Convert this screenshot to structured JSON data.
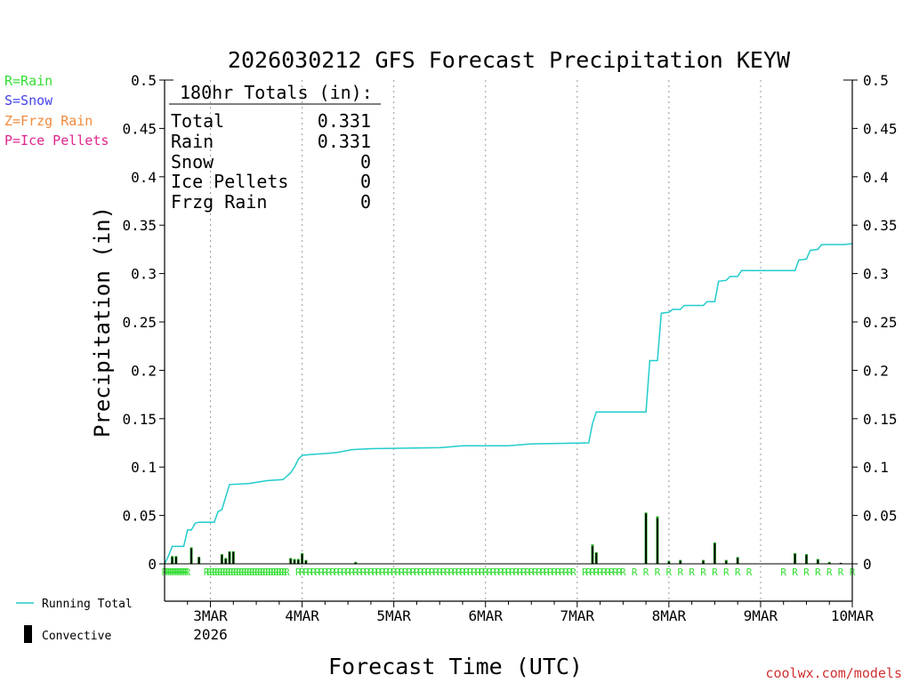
{
  "chart_data": {
    "type": "bar+line",
    "title": "2026030212 GFS Forecast Precipitation KEYW",
    "ylabel": "Precipitation (in)",
    "xlabel": "Forecast Time (UTC)",
    "ylim": [
      0,
      0.5
    ],
    "y_ticks": [
      "0",
      "0.05",
      "0.1",
      "0.15",
      "0.2",
      "0.25",
      "0.3",
      "0.35",
      "0.4",
      "0.45",
      "0.5"
    ],
    "x_ticks": [
      {
        "hour": 12,
        "label": "3MAR",
        "sublabel": "2026"
      },
      {
        "hour": 36,
        "label": "4MAR"
      },
      {
        "hour": 60,
        "label": "5MAR"
      },
      {
        "hour": 84,
        "label": "6MAR"
      },
      {
        "hour": 108,
        "label": "7MAR"
      },
      {
        "hour": 132,
        "label": "8MAR"
      },
      {
        "hour": 156,
        "label": "9MAR"
      },
      {
        "hour": 180,
        "label": "10MAR"
      }
    ],
    "x_range_hours": [
      0,
      180
    ],
    "grid": "vertical dotted at day boundaries",
    "summary_box": {
      "heading": "180hr Totals (in):",
      "rows": [
        {
          "label": "Total",
          "value": "0.331"
        },
        {
          "label": "Rain",
          "value": "0.331"
        },
        {
          "label": "Snow",
          "value": "0"
        },
        {
          "label": "Ice Pellets",
          "value": "0"
        },
        {
          "label": "Frzg Rain",
          "value": "0"
        }
      ]
    },
    "precip_type_legend": [
      {
        "text": "R=Rain",
        "color": "#33dd33"
      },
      {
        "text": "S=Snow",
        "color": "#4444ee"
      },
      {
        "text": "Z=Frzg Rain",
        "color": "#f08a3c"
      },
      {
        "text": "P=Ice Pellets",
        "color": "#e0258c"
      }
    ],
    "series_legend": [
      {
        "name": "Running Total",
        "color": "#22cccc",
        "kind": "line"
      },
      {
        "name": "Convective",
        "color": "#000000",
        "kind": "bar"
      }
    ],
    "running_total": [
      {
        "h": 0,
        "v": 0.0
      },
      {
        "h": 1,
        "v": 0.008
      },
      {
        "h": 2,
        "v": 0.018
      },
      {
        "h": 5,
        "v": 0.018
      },
      {
        "h": 6,
        "v": 0.035
      },
      {
        "h": 7,
        "v": 0.035
      },
      {
        "h": 8,
        "v": 0.042
      },
      {
        "h": 9,
        "v": 0.043
      },
      {
        "h": 13,
        "v": 0.043
      },
      {
        "h": 14,
        "v": 0.054
      },
      {
        "h": 15,
        "v": 0.056
      },
      {
        "h": 16,
        "v": 0.069
      },
      {
        "h": 17,
        "v": 0.082
      },
      {
        "h": 22,
        "v": 0.083
      },
      {
        "h": 27,
        "v": 0.086
      },
      {
        "h": 31,
        "v": 0.087
      },
      {
        "h": 33,
        "v": 0.094
      },
      {
        "h": 34,
        "v": 0.1
      },
      {
        "h": 35,
        "v": 0.108
      },
      {
        "h": 36,
        "v": 0.112
      },
      {
        "h": 38,
        "v": 0.113
      },
      {
        "h": 42,
        "v": 0.114
      },
      {
        "h": 45,
        "v": 0.115
      },
      {
        "h": 49,
        "v": 0.118
      },
      {
        "h": 54,
        "v": 0.119
      },
      {
        "h": 72,
        "v": 0.12
      },
      {
        "h": 78,
        "v": 0.122
      },
      {
        "h": 90,
        "v": 0.122
      },
      {
        "h": 96,
        "v": 0.124
      },
      {
        "h": 111,
        "v": 0.125
      },
      {
        "h": 112,
        "v": 0.145
      },
      {
        "h": 113,
        "v": 0.157
      },
      {
        "h": 126,
        "v": 0.157
      },
      {
        "h": 127,
        "v": 0.21
      },
      {
        "h": 129,
        "v": 0.21
      },
      {
        "h": 130,
        "v": 0.259
      },
      {
        "h": 132,
        "v": 0.26
      },
      {
        "h": 133,
        "v": 0.263
      },
      {
        "h": 135,
        "v": 0.263
      },
      {
        "h": 136,
        "v": 0.267
      },
      {
        "h": 141,
        "v": 0.267
      },
      {
        "h": 142,
        "v": 0.271
      },
      {
        "h": 144,
        "v": 0.271
      },
      {
        "h": 145,
        "v": 0.292
      },
      {
        "h": 147,
        "v": 0.293
      },
      {
        "h": 148,
        "v": 0.297
      },
      {
        "h": 150,
        "v": 0.297
      },
      {
        "h": 151,
        "v": 0.303
      },
      {
        "h": 165,
        "v": 0.303
      },
      {
        "h": 166,
        "v": 0.314
      },
      {
        "h": 168,
        "v": 0.315
      },
      {
        "h": 169,
        "v": 0.324
      },
      {
        "h": 171,
        "v": 0.325
      },
      {
        "h": 172,
        "v": 0.33
      },
      {
        "h": 178,
        "v": 0.33
      },
      {
        "h": 180,
        "v": 0.331
      }
    ],
    "period_bars": [
      {
        "h": 2,
        "total": 0.008,
        "conv": 0.007
      },
      {
        "h": 3,
        "total": 0.008,
        "conv": 0.007
      },
      {
        "h": 7,
        "total": 0.017,
        "conv": 0.016
      },
      {
        "h": 9,
        "total": 0.007,
        "conv": 0.007
      },
      {
        "h": 15,
        "total": 0.01,
        "conv": 0.009
      },
      {
        "h": 16,
        "total": 0.006,
        "conv": 0.005
      },
      {
        "h": 17,
        "total": 0.013,
        "conv": 0.012
      },
      {
        "h": 18,
        "total": 0.013,
        "conv": 0.012
      },
      {
        "h": 33,
        "total": 0.006,
        "conv": 0.005
      },
      {
        "h": 34,
        "total": 0.005,
        "conv": 0.004
      },
      {
        "h": 35,
        "total": 0.005,
        "conv": 0.004
      },
      {
        "h": 36,
        "total": 0.011,
        "conv": 0.01
      },
      {
        "h": 37,
        "total": 0.004,
        "conv": 0.003
      },
      {
        "h": 50,
        "total": 0.002,
        "conv": 0.001
      },
      {
        "h": 112,
        "total": 0.02,
        "conv": 0.018
      },
      {
        "h": 113,
        "total": 0.012,
        "conv": 0.011
      },
      {
        "h": 126,
        "total": 0.053,
        "conv": 0.052
      },
      {
        "h": 129,
        "total": 0.049,
        "conv": 0.047
      },
      {
        "h": 132,
        "total": 0.003,
        "conv": 0.002
      },
      {
        "h": 135,
        "total": 0.004,
        "conv": 0.003
      },
      {
        "h": 141,
        "total": 0.004,
        "conv": 0.003
      },
      {
        "h": 144,
        "total": 0.022,
        "conv": 0.021
      },
      {
        "h": 147,
        "total": 0.004,
        "conv": 0.003
      },
      {
        "h": 150,
        "total": 0.007,
        "conv": 0.006
      },
      {
        "h": 165,
        "total": 0.011,
        "conv": 0.01
      },
      {
        "h": 168,
        "total": 0.01,
        "conv": 0.009
      },
      {
        "h": 171,
        "total": 0.005,
        "conv": 0.004
      },
      {
        "h": 174,
        "total": 0.002,
        "conv": 0.001
      },
      {
        "h": 177,
        "total": 0.001,
        "conv": 0.001
      }
    ],
    "type_marker_runs": [
      {
        "from": 0,
        "to": 6,
        "step": 0.5
      },
      {
        "from": 11,
        "to": 32,
        "step": 0.7
      },
      {
        "from": 35,
        "to": 107,
        "step": 1.0
      },
      {
        "from": 110,
        "to": 120,
        "step": 1.0
      },
      {
        "from": 123,
        "to": 153,
        "step": 3
      },
      {
        "from": 162,
        "to": 180,
        "step": 3
      }
    ],
    "type_marker_letter": "R",
    "type_marker_color": "#33dd33",
    "line_color": "#22cccc",
    "bar_total_color": "#1aa51a",
    "bar_conv_color": "#000000"
  },
  "credit": "coolwx.com/models"
}
